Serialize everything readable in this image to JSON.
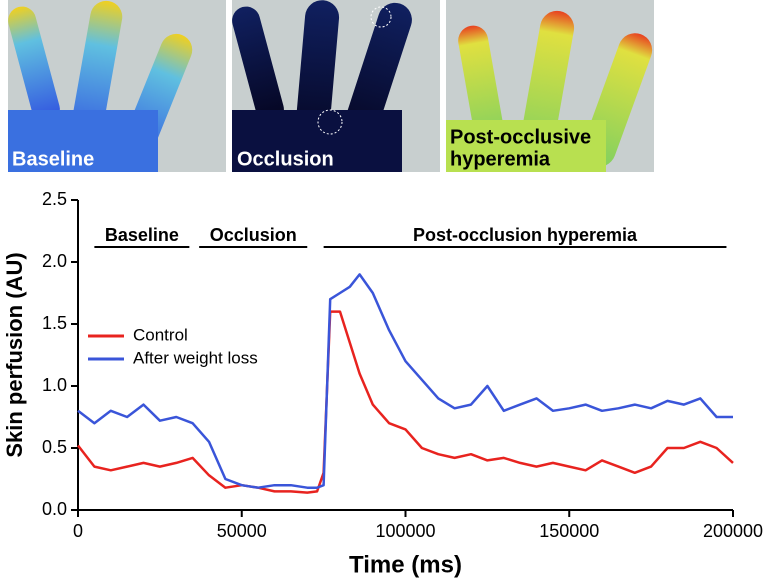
{
  "images": [
    {
      "label": [
        "Baseline"
      ]
    },
    {
      "label": [
        "Occlusion"
      ]
    },
    {
      "label": [
        "Post-occlusive",
        "hyperemia"
      ]
    }
  ],
  "chart_data": {
    "type": "line",
    "xlabel": "Time (ms)",
    "ylabel": "Skin perfusion (AU)",
    "x": [
      0,
      5000,
      10000,
      15000,
      20000,
      25000,
      30000,
      35000,
      40000,
      45000,
      50000,
      55000,
      60000,
      65000,
      70000,
      73000,
      75000,
      77000,
      80000,
      83000,
      86000,
      90000,
      95000,
      100000,
      105000,
      110000,
      115000,
      120000,
      125000,
      130000,
      135000,
      140000,
      145000,
      150000,
      155000,
      160000,
      165000,
      170000,
      175000,
      180000,
      185000,
      190000,
      195000,
      200000
    ],
    "series": [
      {
        "name": "Control",
        "color": "#e8231f",
        "values": [
          0.52,
          0.35,
          0.32,
          0.35,
          0.38,
          0.35,
          0.38,
          0.42,
          0.28,
          0.18,
          0.2,
          0.18,
          0.15,
          0.15,
          0.14,
          0.15,
          0.3,
          1.6,
          1.6,
          1.35,
          1.1,
          0.85,
          0.7,
          0.65,
          0.5,
          0.45,
          0.42,
          0.45,
          0.4,
          0.42,
          0.38,
          0.35,
          0.38,
          0.35,
          0.32,
          0.4,
          0.35,
          0.3,
          0.35,
          0.5,
          0.5,
          0.55,
          0.5,
          0.38
        ]
      },
      {
        "name": "After weight loss",
        "color": "#3a55d9",
        "values": [
          0.8,
          0.7,
          0.8,
          0.75,
          0.85,
          0.72,
          0.75,
          0.7,
          0.55,
          0.25,
          0.2,
          0.18,
          0.2,
          0.2,
          0.18,
          0.18,
          0.2,
          1.7,
          1.75,
          1.8,
          1.9,
          1.75,
          1.45,
          1.2,
          1.05,
          0.9,
          0.82,
          0.85,
          1.0,
          0.8,
          0.85,
          0.9,
          0.8,
          0.82,
          0.85,
          0.8,
          0.82,
          0.85,
          0.82,
          0.88,
          0.85,
          0.9,
          0.75,
          0.75
        ]
      }
    ],
    "xlim": [
      0,
      200000
    ],
    "xticks": [
      0,
      50000,
      100000,
      150000,
      200000
    ],
    "ylim": [
      0,
      2.5
    ],
    "yticks": [
      {
        "value": 0,
        "label": "0.0"
      },
      0.5,
      {
        "value": 1,
        "label": "1.0"
      },
      1.5,
      {
        "value": 2,
        "label": "2.0"
      },
      2.5
    ],
    "annotations": [
      {
        "text": "Baseline",
        "x": [
          5000,
          34000
        ]
      },
      {
        "text": "Occlusion",
        "x": [
          37000,
          70000
        ]
      },
      {
        "text": "Post-occlusion hyperemia",
        "x": [
          75000,
          198000
        ]
      }
    ],
    "legend": "left"
  }
}
